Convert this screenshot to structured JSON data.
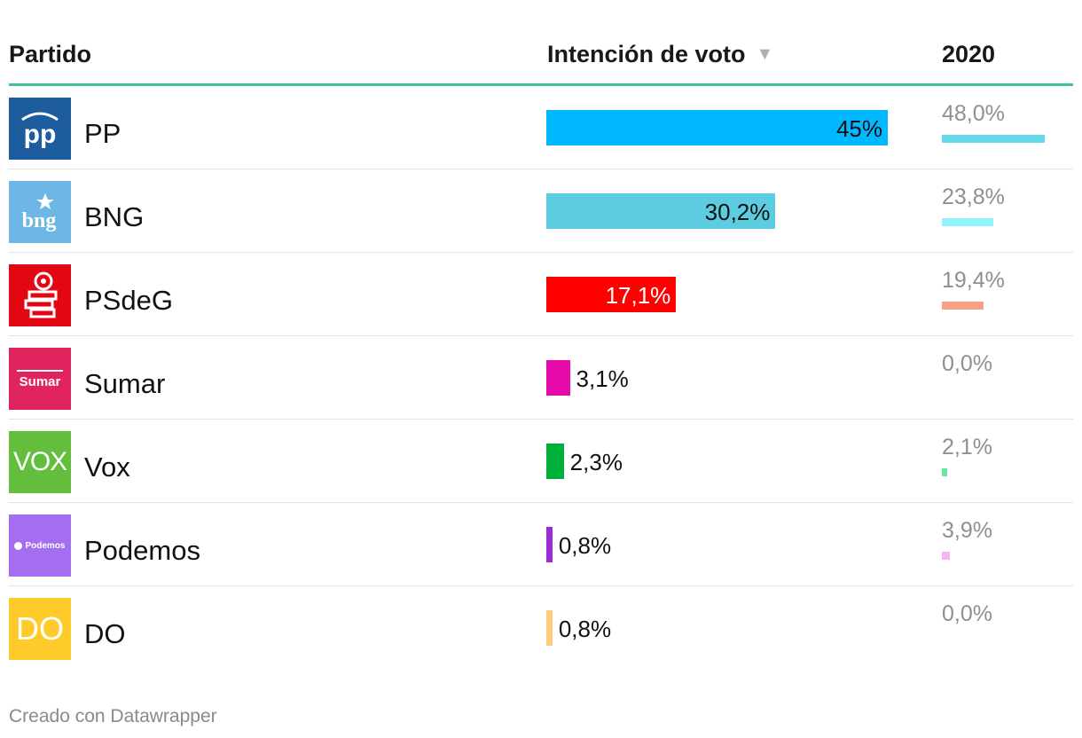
{
  "header": {
    "col_party": "Partido",
    "col_vote": "Intención de voto",
    "sort_icon": "▼",
    "col_prev": "2020",
    "rule_color": "#3cc48c"
  },
  "chart_data": {
    "type": "table",
    "columns": [
      "Partido",
      "Intención de voto",
      "2020"
    ],
    "max_value": 48.0,
    "rows": [
      {
        "party": "PP",
        "vote": 45.0,
        "vote_label": "45%",
        "vote_color": "#00b8ff",
        "prev": 48.0,
        "prev_label": "48,0%",
        "prev_color": "#66d9ea",
        "logo_bg": "#1d5d9d",
        "logo_text": "pp",
        "logo_icon": "pp-logo-icon"
      },
      {
        "party": "BNG",
        "vote": 30.2,
        "vote_label": "30,2%",
        "vote_color": "#5ccde0",
        "prev": 23.8,
        "prev_label": "23,8%",
        "prev_color": "#92f4f8",
        "logo_bg": "#6eb6e6",
        "logo_text": "bng",
        "logo_icon": "bng-logo-icon"
      },
      {
        "party": "PSdeG",
        "vote": 17.1,
        "vote_label": "17,1%",
        "vote_color": "#ff0000",
        "prev": 19.4,
        "prev_label": "19,4%",
        "prev_color": "#f8a086",
        "logo_bg": "#e30613",
        "logo_text": "",
        "logo_icon": "psdeg-rose-logo-icon"
      },
      {
        "party": "Sumar",
        "vote": 3.1,
        "vote_label": "3,1%",
        "vote_color": "#e60aa8",
        "prev": 0.0,
        "prev_label": "0,0%",
        "prev_color": "#f08fc8",
        "logo_bg": "#e0245e",
        "logo_text": "Sumar",
        "logo_icon": "sumar-logo-icon"
      },
      {
        "party": "Vox",
        "vote": 2.3,
        "vote_label": "2,3%",
        "vote_color": "#00ae3a",
        "prev": 2.1,
        "prev_label": "2,1%",
        "prev_color": "#6de4a4",
        "logo_bg": "#63be3d",
        "logo_text": "VOX",
        "logo_icon": "vox-logo-icon"
      },
      {
        "party": "Podemos",
        "vote": 0.8,
        "vote_label": "0,8%",
        "vote_color": "#9a2bd6",
        "prev": 3.9,
        "prev_label": "3,9%",
        "prev_color": "#f4b4f6",
        "logo_bg": "#a36ef0",
        "logo_text": "Podemos",
        "logo_icon": "podemos-logo-icon"
      },
      {
        "party": "DO",
        "vote": 0.8,
        "vote_label": "0,8%",
        "vote_color": "#ffcc80",
        "prev": 0.0,
        "prev_label": "0,0%",
        "prev_color": "#ffe0a0",
        "logo_bg": "#ffcb2b",
        "logo_text": "DO",
        "logo_icon": "do-logo-icon"
      }
    ]
  },
  "footer": {
    "credit": "Creado con Datawrapper"
  }
}
